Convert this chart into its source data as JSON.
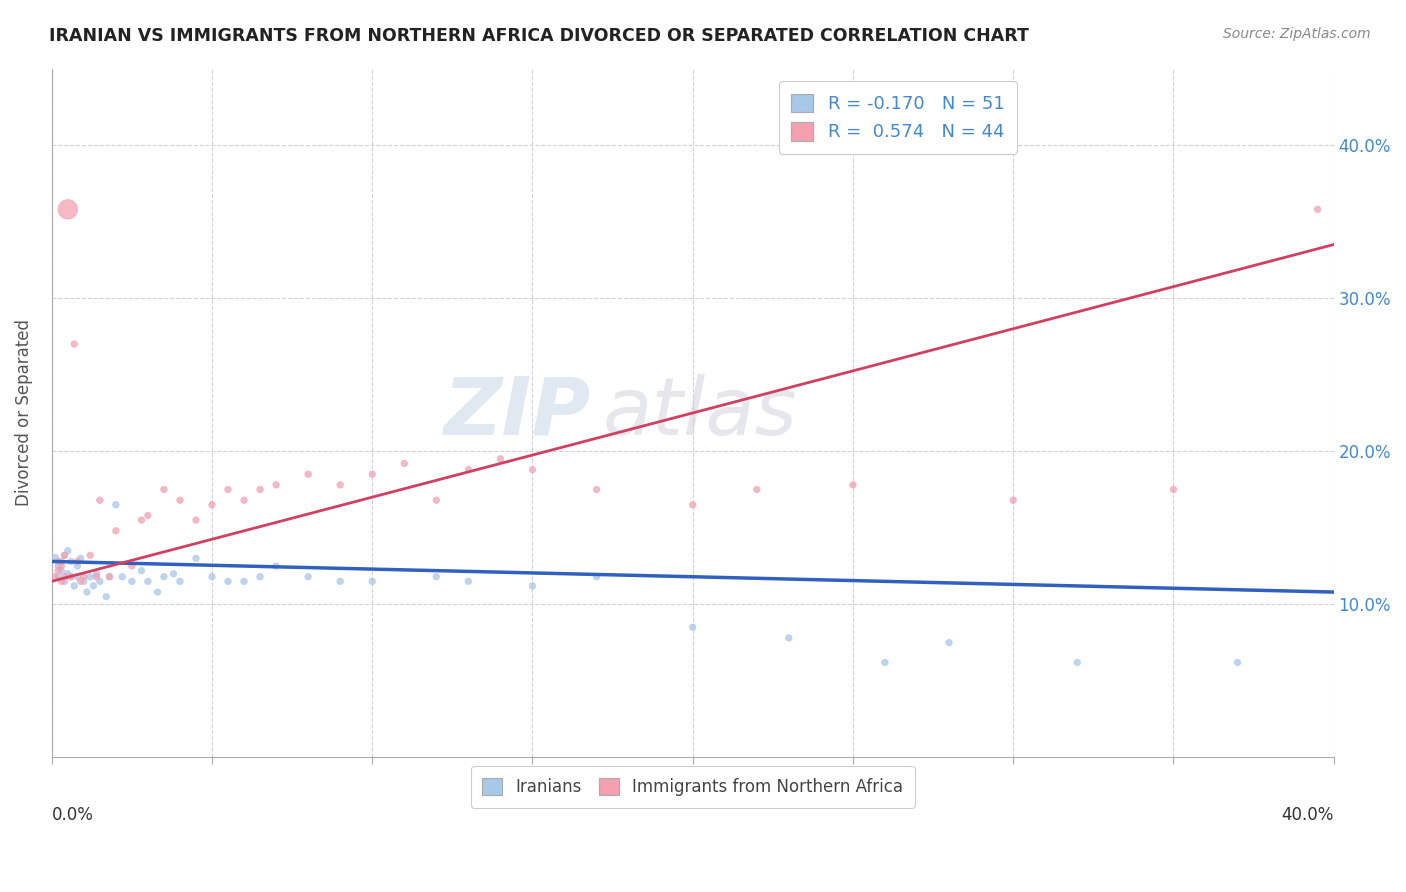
{
  "title": "IRANIAN VS IMMIGRANTS FROM NORTHERN AFRICA DIVORCED OR SEPARATED CORRELATION CHART",
  "source": "Source: ZipAtlas.com",
  "ylabel": "Divorced or Separated",
  "ytick_values": [
    0.1,
    0.2,
    0.3,
    0.4
  ],
  "xlim": [
    0.0,
    0.4
  ],
  "ylim": [
    0.0,
    0.45
  ],
  "blue_color": "#a8c8e8",
  "pink_color": "#f4a0b0",
  "blue_line_color": "#3060c0",
  "pink_line_color": "#d04060",
  "iranians_R": -0.17,
  "iranians_N": 51,
  "northafrica_R": 0.574,
  "northafrica_N": 44,
  "iranians_x": [
    0.001,
    0.002,
    0.002,
    0.003,
    0.003,
    0.004,
    0.004,
    0.005,
    0.005,
    0.006,
    0.006,
    0.007,
    0.008,
    0.008,
    0.009,
    0.01,
    0.011,
    0.012,
    0.013,
    0.014,
    0.015,
    0.017,
    0.018,
    0.02,
    0.022,
    0.025,
    0.028,
    0.03,
    0.033,
    0.035,
    0.038,
    0.04,
    0.045,
    0.05,
    0.055,
    0.06,
    0.065,
    0.07,
    0.08,
    0.09,
    0.1,
    0.12,
    0.13,
    0.15,
    0.17,
    0.2,
    0.23,
    0.26,
    0.28,
    0.32,
    0.37
  ],
  "iranians_y": [
    0.13,
    0.125,
    0.118,
    0.128,
    0.122,
    0.132,
    0.115,
    0.12,
    0.135,
    0.118,
    0.128,
    0.112,
    0.125,
    0.118,
    0.13,
    0.115,
    0.108,
    0.118,
    0.112,
    0.12,
    0.115,
    0.105,
    0.118,
    0.165,
    0.118,
    0.115,
    0.122,
    0.115,
    0.108,
    0.118,
    0.12,
    0.115,
    0.13,
    0.118,
    0.115,
    0.115,
    0.118,
    0.125,
    0.118,
    0.115,
    0.115,
    0.118,
    0.115,
    0.112,
    0.118,
    0.085,
    0.078,
    0.062,
    0.075,
    0.062,
    0.062
  ],
  "iranians_sizes": [
    35,
    22,
    22,
    22,
    22,
    22,
    22,
    22,
    22,
    22,
    22,
    22,
    22,
    22,
    22,
    22,
    22,
    22,
    22,
    22,
    22,
    22,
    22,
    22,
    22,
    22,
    22,
    22,
    22,
    22,
    22,
    22,
    22,
    22,
    22,
    22,
    22,
    22,
    22,
    22,
    22,
    22,
    22,
    22,
    22,
    22,
    22,
    22,
    22,
    22,
    22
  ],
  "northafrica_x": [
    0.001,
    0.002,
    0.002,
    0.003,
    0.003,
    0.004,
    0.004,
    0.005,
    0.006,
    0.007,
    0.008,
    0.009,
    0.01,
    0.012,
    0.014,
    0.015,
    0.018,
    0.02,
    0.025,
    0.028,
    0.03,
    0.035,
    0.04,
    0.045,
    0.05,
    0.055,
    0.06,
    0.065,
    0.07,
    0.08,
    0.09,
    0.1,
    0.11,
    0.12,
    0.13,
    0.14,
    0.15,
    0.17,
    0.2,
    0.22,
    0.25,
    0.3,
    0.35,
    0.395
  ],
  "northafrica_y": [
    0.118,
    0.128,
    0.122,
    0.115,
    0.125,
    0.132,
    0.118,
    0.358,
    0.118,
    0.27,
    0.128,
    0.115,
    0.118,
    0.132,
    0.118,
    0.168,
    0.118,
    0.148,
    0.125,
    0.155,
    0.158,
    0.175,
    0.168,
    0.155,
    0.165,
    0.175,
    0.168,
    0.175,
    0.178,
    0.185,
    0.178,
    0.185,
    0.192,
    0.168,
    0.188,
    0.195,
    0.188,
    0.175,
    0.165,
    0.175,
    0.178,
    0.168,
    0.175,
    0.358
  ],
  "northafrica_sizes": [
    22,
    22,
    22,
    22,
    22,
    22,
    22,
    200,
    22,
    22,
    22,
    22,
    22,
    22,
    22,
    22,
    22,
    22,
    22,
    22,
    22,
    22,
    22,
    22,
    22,
    22,
    22,
    22,
    22,
    22,
    22,
    22,
    22,
    22,
    22,
    22,
    22,
    22,
    22,
    22,
    22,
    22,
    22,
    22
  ]
}
